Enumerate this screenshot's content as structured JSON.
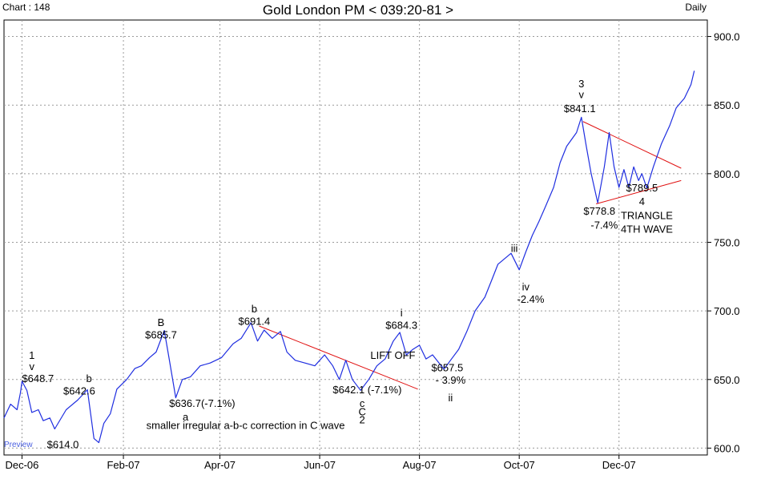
{
  "header": {
    "chart_number": "Chart : 148",
    "title": "Gold London PM < 039:20-81 >",
    "frequency": "Daily"
  },
  "watermark": "Preview",
  "colors": {
    "price_line": "#1f2ee0",
    "trend_lines": "#e01010",
    "grid": "#9a9a9a",
    "watermark": "#4a5fe0",
    "background": "#ffffff"
  },
  "chart_data": {
    "type": "line",
    "title": "Gold London PM < 039:20-81 >",
    "xlabel": "",
    "ylabel": "",
    "ylim": [
      595,
      912
    ],
    "xlim": [
      "2006-11-20",
      "2008-01-24"
    ],
    "grid": true,
    "x_ticks": [
      {
        "date": "2006-12-01",
        "label": "Dec-06"
      },
      {
        "date": "2007-02-01",
        "label": "Feb-07"
      },
      {
        "date": "2007-04-01",
        "label": "Apr-07"
      },
      {
        "date": "2007-06-01",
        "label": "Jun-07"
      },
      {
        "date": "2007-08-01",
        "label": "Aug-07"
      },
      {
        "date": "2007-10-01",
        "label": "Oct-07"
      },
      {
        "date": "2007-12-01",
        "label": "Dec-07"
      }
    ],
    "y_ticks": [
      "600.0",
      "650.0",
      "700.0",
      "750.0",
      "800.0",
      "850.0",
      "900.0"
    ],
    "series": [
      {
        "color": "#1f2ee0",
        "points": [
          {
            "x": "2006-11-20",
            "y": 622
          },
          {
            "x": "2006-11-24",
            "y": 632
          },
          {
            "x": "2006-11-28",
            "y": 628
          },
          {
            "x": "2006-11-30",
            "y": 640
          },
          {
            "x": "2006-12-01",
            "y": 648.7
          },
          {
            "x": "2006-12-04",
            "y": 642
          },
          {
            "x": "2006-12-07",
            "y": 626
          },
          {
            "x": "2006-12-11",
            "y": 628
          },
          {
            "x": "2006-12-14",
            "y": 620
          },
          {
            "x": "2006-12-18",
            "y": 622
          },
          {
            "x": "2006-12-21",
            "y": 614
          },
          {
            "x": "2006-12-28",
            "y": 628
          },
          {
            "x": "2007-01-04",
            "y": 635
          },
          {
            "x": "2007-01-10",
            "y": 642.6
          },
          {
            "x": "2007-01-14",
            "y": 607
          },
          {
            "x": "2007-01-17",
            "y": 604
          },
          {
            "x": "2007-01-20",
            "y": 618
          },
          {
            "x": "2007-01-24",
            "y": 625
          },
          {
            "x": "2007-01-28",
            "y": 643
          },
          {
            "x": "2007-02-03",
            "y": 650
          },
          {
            "x": "2007-02-08",
            "y": 658
          },
          {
            "x": "2007-02-12",
            "y": 660
          },
          {
            "x": "2007-02-17",
            "y": 666
          },
          {
            "x": "2007-02-21",
            "y": 670
          },
          {
            "x": "2007-02-26",
            "y": 685.7
          },
          {
            "x": "2007-03-01",
            "y": 665
          },
          {
            "x": "2007-03-05",
            "y": 636.7
          },
          {
            "x": "2007-03-09",
            "y": 650
          },
          {
            "x": "2007-03-14",
            "y": 652
          },
          {
            "x": "2007-03-20",
            "y": 660
          },
          {
            "x": "2007-03-26",
            "y": 662
          },
          {
            "x": "2007-04-02",
            "y": 666
          },
          {
            "x": "2007-04-09",
            "y": 676
          },
          {
            "x": "2007-04-14",
            "y": 680
          },
          {
            "x": "2007-04-20",
            "y": 691.4
          },
          {
            "x": "2007-04-24",
            "y": 678
          },
          {
            "x": "2007-04-28",
            "y": 686
          },
          {
            "x": "2007-05-03",
            "y": 680
          },
          {
            "x": "2007-05-08",
            "y": 685
          },
          {
            "x": "2007-05-12",
            "y": 670
          },
          {
            "x": "2007-05-17",
            "y": 664
          },
          {
            "x": "2007-05-23",
            "y": 662
          },
          {
            "x": "2007-05-29",
            "y": 660
          },
          {
            "x": "2007-06-04",
            "y": 668
          },
          {
            "x": "2007-06-09",
            "y": 660
          },
          {
            "x": "2007-06-13",
            "y": 650
          },
          {
            "x": "2007-06-17",
            "y": 664
          },
          {
            "x": "2007-06-21",
            "y": 650
          },
          {
            "x": "2007-06-26",
            "y": 642.1
          },
          {
            "x": "2007-07-01",
            "y": 650
          },
          {
            "x": "2007-07-06",
            "y": 660
          },
          {
            "x": "2007-07-11",
            "y": 665
          },
          {
            "x": "2007-07-16",
            "y": 678
          },
          {
            "x": "2007-07-20",
            "y": 684.3
          },
          {
            "x": "2007-07-24",
            "y": 668
          },
          {
            "x": "2007-07-28",
            "y": 672
          },
          {
            "x": "2007-08-01",
            "y": 675
          },
          {
            "x": "2007-08-05",
            "y": 665
          },
          {
            "x": "2007-08-09",
            "y": 668
          },
          {
            "x": "2007-08-13",
            "y": 662
          },
          {
            "x": "2007-08-16",
            "y": 657.5
          },
          {
            "x": "2007-08-20",
            "y": 664
          },
          {
            "x": "2007-08-25",
            "y": 672
          },
          {
            "x": "2007-08-30",
            "y": 685
          },
          {
            "x": "2007-09-04",
            "y": 700
          },
          {
            "x": "2007-09-10",
            "y": 710
          },
          {
            "x": "2007-09-14",
            "y": 722
          },
          {
            "x": "2007-09-18",
            "y": 734
          },
          {
            "x": "2007-09-22",
            "y": 738
          },
          {
            "x": "2007-09-26",
            "y": 742
          },
          {
            "x": "2007-10-01",
            "y": 730
          },
          {
            "x": "2007-10-05",
            "y": 743
          },
          {
            "x": "2007-10-09",
            "y": 755
          },
          {
            "x": "2007-10-13",
            "y": 765
          },
          {
            "x": "2007-10-17",
            "y": 776
          },
          {
            "x": "2007-10-22",
            "y": 790
          },
          {
            "x": "2007-10-26",
            "y": 808
          },
          {
            "x": "2007-10-30",
            "y": 820
          },
          {
            "x": "2007-11-05",
            "y": 830
          },
          {
            "x": "2007-11-08",
            "y": 841.1
          },
          {
            "x": "2007-11-11",
            "y": 820
          },
          {
            "x": "2007-11-14",
            "y": 800
          },
          {
            "x": "2007-11-18",
            "y": 778.8
          },
          {
            "x": "2007-11-22",
            "y": 805
          },
          {
            "x": "2007-11-25",
            "y": 830
          },
          {
            "x": "2007-11-28",
            "y": 805
          },
          {
            "x": "2007-12-01",
            "y": 790
          },
          {
            "x": "2007-12-04",
            "y": 803
          },
          {
            "x": "2007-12-07",
            "y": 790
          },
          {
            "x": "2007-12-10",
            "y": 805
          },
          {
            "x": "2007-12-13",
            "y": 795
          },
          {
            "x": "2007-12-15",
            "y": 800
          },
          {
            "x": "2007-12-18",
            "y": 789.5
          },
          {
            "x": "2007-12-22",
            "y": 805
          },
          {
            "x": "2007-12-27",
            "y": 822
          },
          {
            "x": "2008-01-01",
            "y": 835
          },
          {
            "x": "2008-01-05",
            "y": 848
          },
          {
            "x": "2008-01-10",
            "y": 855
          },
          {
            "x": "2008-01-14",
            "y": 865
          },
          {
            "x": "2008-01-16",
            "y": 875
          }
        ]
      }
    ],
    "trend_lines": [
      {
        "from": {
          "x": "2007-04-25",
          "y": 689
        },
        "to": {
          "x": "2007-07-31",
          "y": 643
        }
      },
      {
        "from": {
          "x": "2007-11-09",
          "y": 838
        },
        "to": {
          "x": "2008-01-08",
          "y": 804
        }
      },
      {
        "from": {
          "x": "2007-11-17",
          "y": 778
        },
        "to": {
          "x": "2008-01-08",
          "y": 795
        }
      }
    ],
    "annotations": [
      {
        "text": "1",
        "x": "2006-12-07",
        "y": 665,
        "anchor": "middle"
      },
      {
        "text": "v",
        "x": "2006-12-07",
        "y": 657,
        "anchor": "middle"
      },
      {
        "text": "$648.7",
        "x": "2006-12-01",
        "y": 648,
        "anchor": "start"
      },
      {
        "text": "b",
        "x": "2007-01-11",
        "y": 648,
        "anchor": "middle"
      },
      {
        "text": "$642.6",
        "x": "2007-01-05",
        "y": 639,
        "anchor": "middle"
      },
      {
        "text": "$614.0",
        "x": "2006-12-26",
        "y": 600,
        "anchor": "middle"
      },
      {
        "text": "B",
        "x": "2007-02-24",
        "y": 689,
        "anchor": "middle"
      },
      {
        "text": "$685.7",
        "x": "2007-02-24",
        "y": 680,
        "anchor": "middle"
      },
      {
        "text": "$636.7(-7.1%)",
        "x": "2007-03-01",
        "y": 630,
        "anchor": "start"
      },
      {
        "text": "a",
        "x": "2007-03-11",
        "y": 620,
        "anchor": "middle"
      },
      {
        "text": "smaller irregular a-b-c correction in C wave",
        "x": "2007-02-15",
        "y": 614,
        "anchor": "start"
      },
      {
        "text": "b",
        "x": "2007-04-22",
        "y": 699,
        "anchor": "middle"
      },
      {
        "text": "$691.4",
        "x": "2007-04-22",
        "y": 690,
        "anchor": "middle"
      },
      {
        "text": "$642.1 (-7.1%)",
        "x": "2007-06-09",
        "y": 640,
        "anchor": "start"
      },
      {
        "text": "c",
        "x": "2007-06-27",
        "y": 630,
        "anchor": "middle"
      },
      {
        "text": "C",
        "x": "2007-06-27",
        "y": 624,
        "anchor": "middle"
      },
      {
        "text": "2",
        "x": "2007-06-27",
        "y": 618,
        "anchor": "middle"
      },
      {
        "text": "LIFT OFF",
        "x": "2007-07-02",
        "y": 665,
        "anchor": "start"
      },
      {
        "text": "i",
        "x": "2007-07-21",
        "y": 696,
        "anchor": "middle"
      },
      {
        "text": "$684.3",
        "x": "2007-07-21",
        "y": 687,
        "anchor": "middle"
      },
      {
        "text": "$657.5",
        "x": "2007-08-18",
        "y": 656,
        "anchor": "middle"
      },
      {
        "text": "- 3.9%",
        "x": "2007-08-20",
        "y": 647,
        "anchor": "middle"
      },
      {
        "text": "ii",
        "x": "2007-08-20",
        "y": 634,
        "anchor": "middle"
      },
      {
        "text": "iii",
        "x": "2007-09-28",
        "y": 743,
        "anchor": "middle"
      },
      {
        "text": "iv",
        "x": "2007-10-05",
        "y": 715,
        "anchor": "middle"
      },
      {
        "text": "-2.4%",
        "x": "2007-10-08",
        "y": 706,
        "anchor": "middle"
      },
      {
        "text": "3",
        "x": "2007-11-08",
        "y": 863,
        "anchor": "middle"
      },
      {
        "text": "v",
        "x": "2007-11-08",
        "y": 855,
        "anchor": "middle"
      },
      {
        "text": "$841.1",
        "x": "2007-11-07",
        "y": 845,
        "anchor": "middle"
      },
      {
        "text": "$778.8",
        "x": "2007-11-19",
        "y": 770,
        "anchor": "middle"
      },
      {
        "text": "-7.4%",
        "x": "2007-11-22",
        "y": 760,
        "anchor": "middle"
      },
      {
        "text": "$789.5",
        "x": "2007-12-15",
        "y": 787,
        "anchor": "middle"
      },
      {
        "text": "4",
        "x": "2007-12-15",
        "y": 777,
        "anchor": "middle"
      },
      {
        "text": "TRIANGLE",
        "x": "2007-12-18",
        "y": 767,
        "anchor": "middle"
      },
      {
        "text": "4TH WAVE",
        "x": "2007-12-18",
        "y": 757,
        "anchor": "middle"
      }
    ]
  }
}
